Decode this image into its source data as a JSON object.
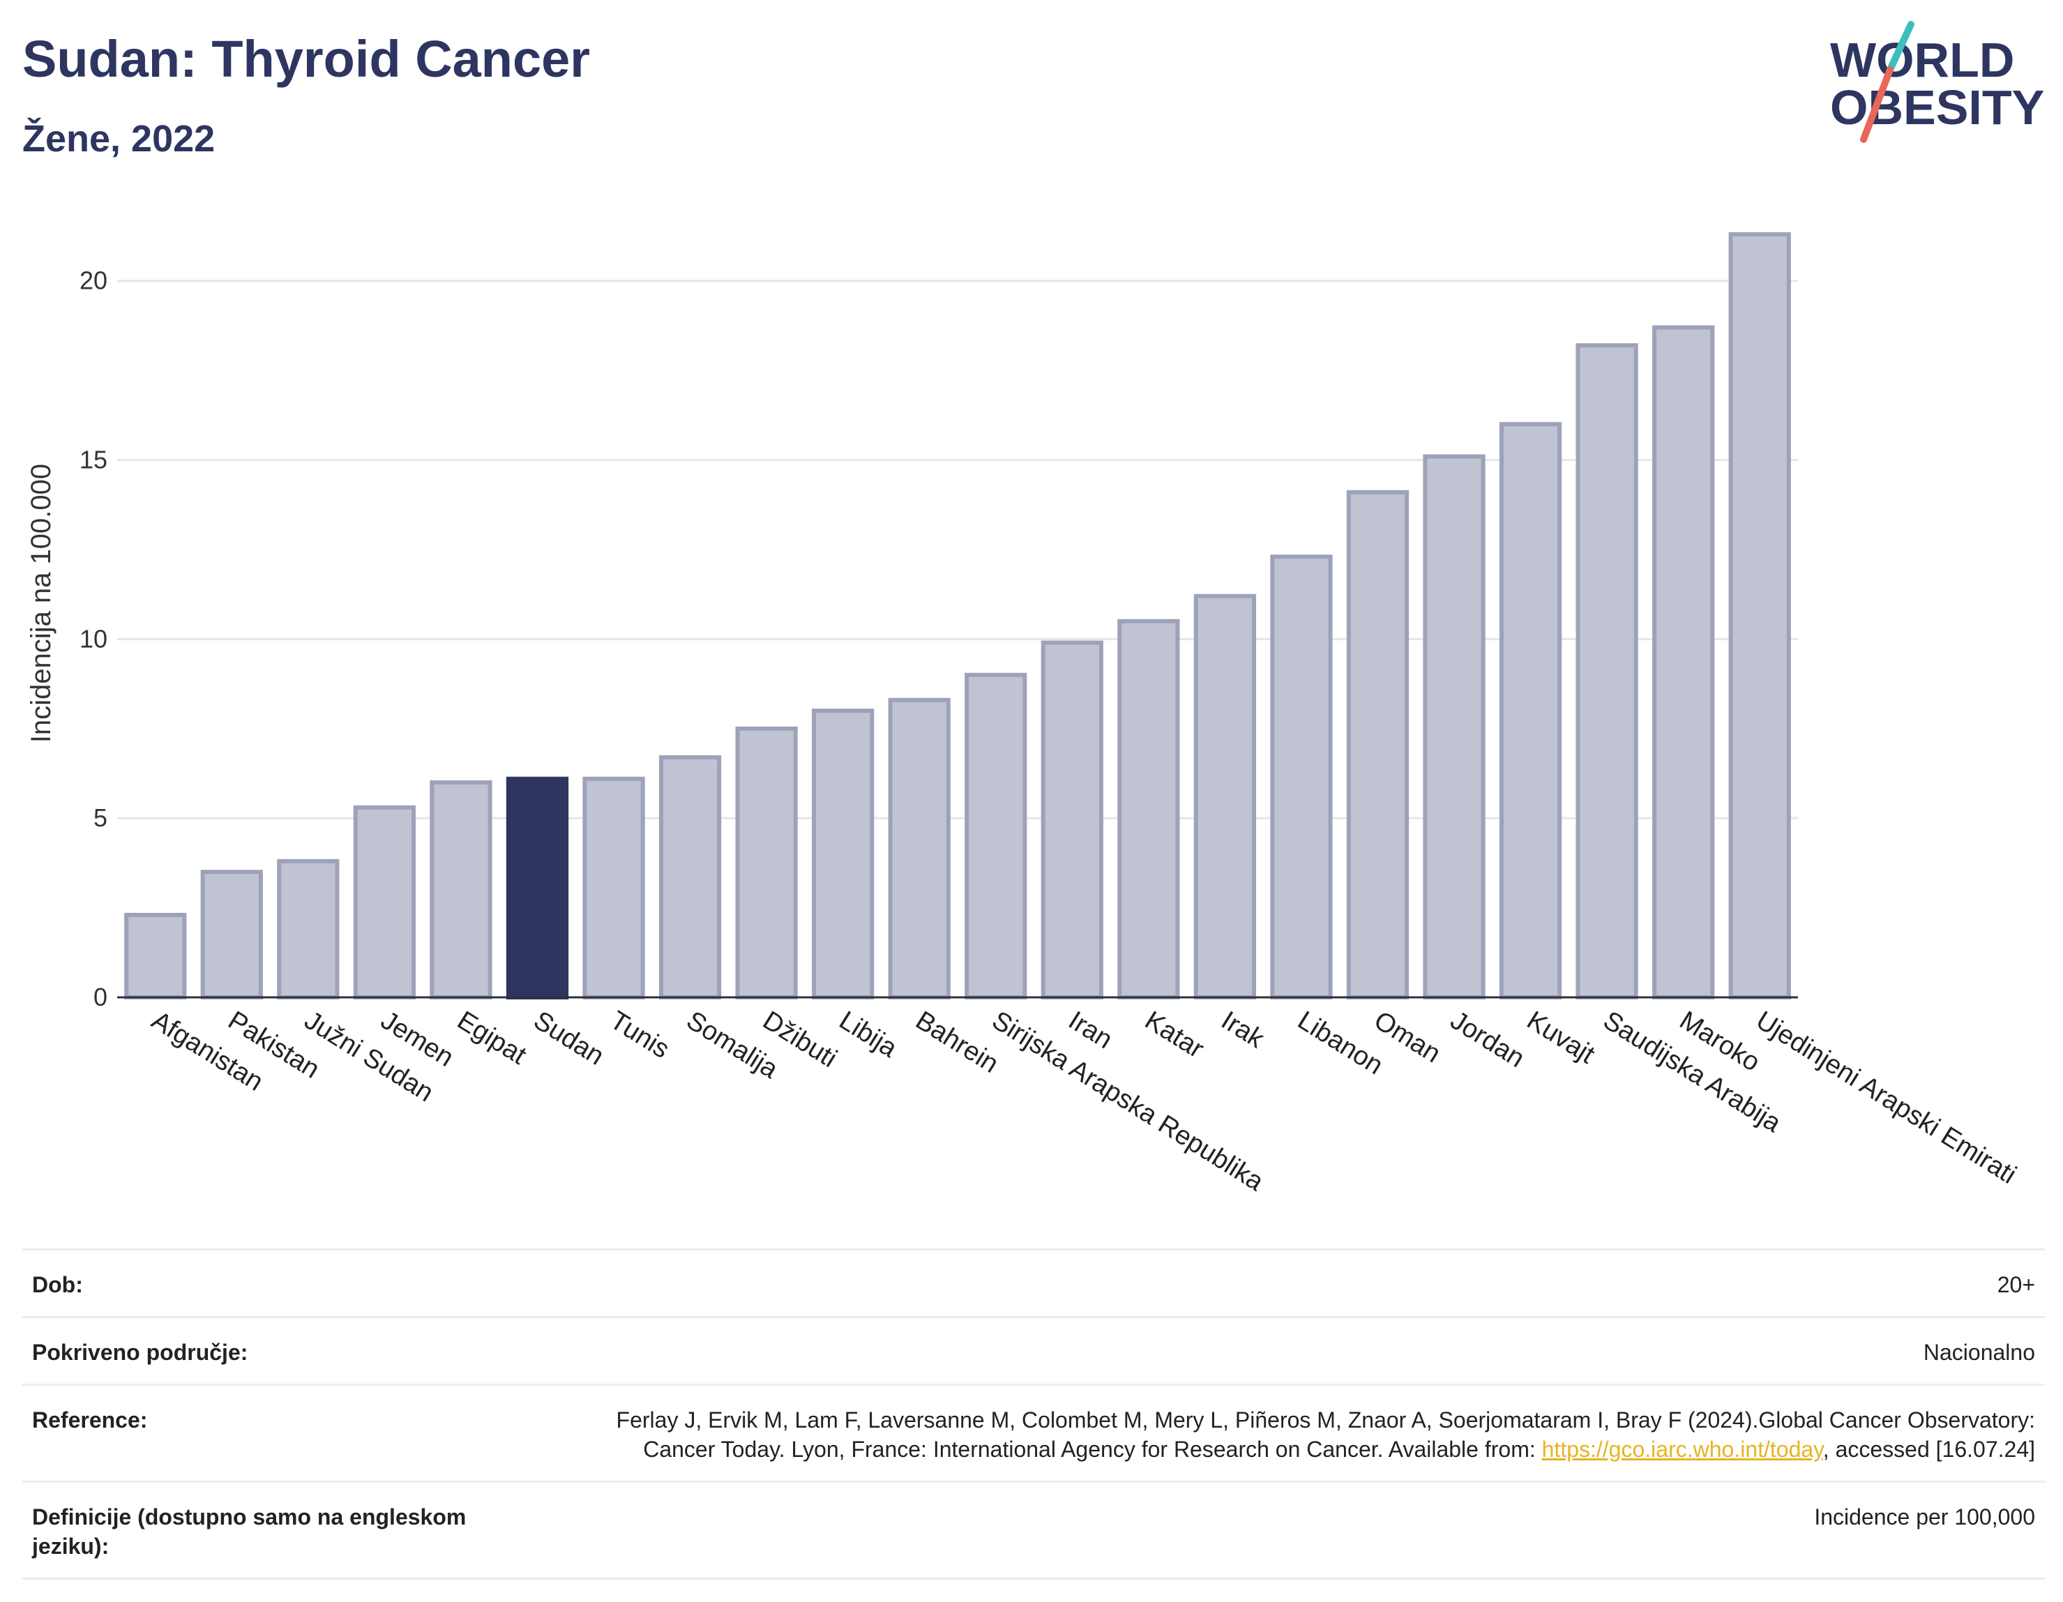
{
  "header": {
    "title": "Sudan: Thyroid Cancer",
    "subtitle": "Žene, 2022",
    "logo_line1": "WORLD",
    "logo_line2": "OBESITY"
  },
  "colors": {
    "bar": "#c0c3d2",
    "bar_stroke": "#9ea2b9",
    "highlight": "#2d3560",
    "title": "#2d3560",
    "grid": "#e6e6e6",
    "logo_teal": "#3bbfbf",
    "logo_red": "#e8675a"
  },
  "chart_data": {
    "type": "bar",
    "ylabel": "Incidencija na 100.000",
    "ylim": [
      0,
      22
    ],
    "yticks": [
      0,
      5,
      10,
      15,
      20
    ],
    "highlight": "Sudan",
    "categories": [
      "Afganistan",
      "Pakistan",
      "Južni Sudan",
      "Jemen",
      "Egipat",
      "Sudan",
      "Tunis",
      "Somalija",
      "Džibuti",
      "Libija",
      "Bahrein",
      "Sirijska Arapska Republika",
      "Iran",
      "Katar",
      "Irak",
      "Libanon",
      "Oman",
      "Jordan",
      "Kuvajt",
      "Saudijska Arabija",
      "Maroko",
      "Ujedinjeni Arapski Emirati"
    ],
    "values": [
      2.3,
      3.5,
      3.8,
      5.3,
      6.0,
      6.1,
      6.1,
      6.7,
      7.5,
      8.0,
      8.3,
      9.0,
      9.9,
      10.5,
      11.2,
      12.3,
      14.1,
      15.1,
      16.0,
      18.2,
      18.7,
      21.3
    ],
    "grid": true
  },
  "meta": {
    "age_label": "Dob:",
    "age_value": "20+",
    "coverage_label": "Pokriveno područje:",
    "coverage_value": "Nacionalno",
    "reference_label": "Reference:",
    "reference_text_1": "Ferlay J, Ervik M, Lam F, Laversanne M, Colombet M, Mery L, Piñeros M, Znaor A, Soerjomataram I, Bray F (2024).Global Cancer Observatory: Cancer Today. Lyon, France: International Agency for Research on Cancer. Available from: ",
    "reference_link": "https://gco.iarc.who.int/today",
    "reference_text_2": ", accessed [16.07.24]",
    "definition_label": "Definicije (dostupno samo na engleskom jeziku):",
    "definition_value": "Incidence per 100,000"
  }
}
